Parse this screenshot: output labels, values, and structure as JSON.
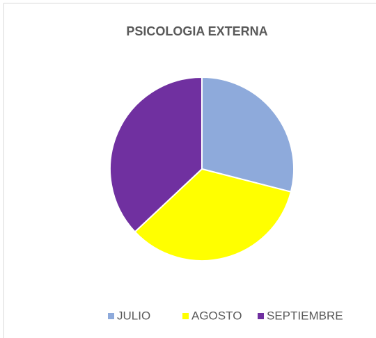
{
  "chart_data": {
    "type": "pie",
    "title": "PSICOLOGIA EXTERNA",
    "categories": [
      "JULIO",
      "AGOSTO",
      "SEPTIEMBRE"
    ],
    "values": [
      29,
      34,
      37
    ],
    "colors": [
      "#8eaadb",
      "#ffff00",
      "#7030a0"
    ],
    "legend": "bottom"
  }
}
